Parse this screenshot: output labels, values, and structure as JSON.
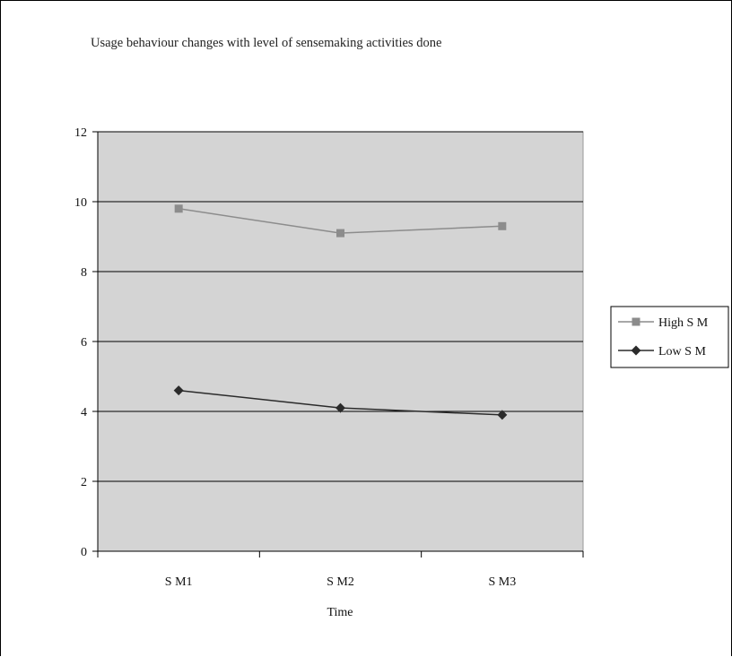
{
  "chart_data": {
    "type": "line",
    "title": "Usage behaviour changes with level of sensemaking activities done",
    "xlabel": "Time",
    "ylabel": "",
    "categories": [
      "S M1",
      "S M2",
      "S M3"
    ],
    "ylim": [
      0,
      12
    ],
    "yticks": [
      0,
      2,
      4,
      6,
      8,
      10,
      12
    ],
    "grid": true,
    "legend_position": "right",
    "plot_background": "#d4d4d4",
    "series": [
      {
        "name": "High S M",
        "values": [
          9.8,
          9.1,
          9.3
        ],
        "color": "#8c8c8c",
        "marker": "square"
      },
      {
        "name": "Low S M",
        "values": [
          4.6,
          4.1,
          3.9
        ],
        "color": "#2b2b2b",
        "marker": "diamond"
      }
    ]
  }
}
